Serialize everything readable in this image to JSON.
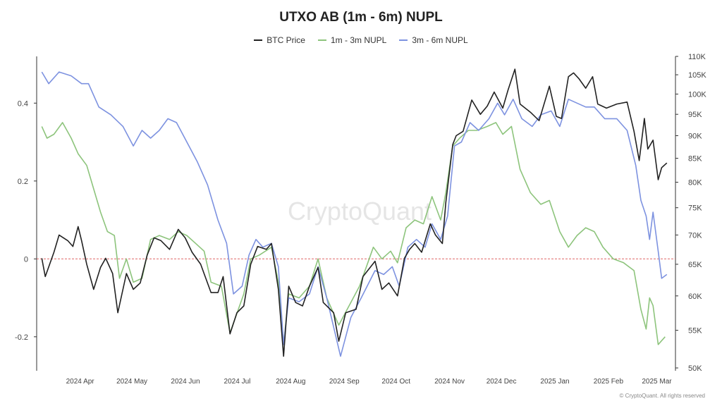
{
  "chart_data": {
    "type": "line",
    "title": "UTXO AB (1m - 6m) NUPL",
    "watermark": "CryptoQuant",
    "footer": "© CryptoQuant. All rights reserved",
    "x_range": [
      "2024-03-15",
      "2025-03-20"
    ],
    "left_axis": {
      "range": [
        -0.28,
        0.52
      ],
      "ticks": [
        -0.2,
        0,
        0.2,
        0.4
      ]
    },
    "right_axis": {
      "scale": "log",
      "range": [
        50000,
        110000
      ],
      "ticks": [
        50000,
        55000,
        60000,
        65000,
        70000,
        75000,
        80000,
        85000,
        90000,
        95000,
        100000,
        105000,
        110000
      ],
      "tick_labels": [
        "50K",
        "55K",
        "60K",
        "65K",
        "70K",
        "75K",
        "80K",
        "85K",
        "90K",
        "95K",
        "100K",
        "105K",
        "110K"
      ]
    },
    "x_ticks": [
      {
        "date": "2024-04-01",
        "label": "2024 Apr"
      },
      {
        "date": "2024-05-01",
        "label": "2024 May"
      },
      {
        "date": "2024-06-01",
        "label": "2024 Jun"
      },
      {
        "date": "2024-07-01",
        "label": "2024 Jul"
      },
      {
        "date": "2024-08-01",
        "label": "2024 Aug"
      },
      {
        "date": "2024-09-01",
        "label": "2024 Sep"
      },
      {
        "date": "2024-10-01",
        "label": "2024 Oct"
      },
      {
        "date": "2024-11-01",
        "label": "2024 Nov"
      },
      {
        "date": "2024-12-01",
        "label": "2024 Dec"
      },
      {
        "date": "2025-01-01",
        "label": "2025 Jan"
      },
      {
        "date": "2025-02-01",
        "label": "2025 Feb"
      },
      {
        "date": "2025-03-01",
        "label": "2025 Mar"
      }
    ],
    "zero_line": {
      "value": 0,
      "color": "#e06666"
    },
    "grid": false,
    "legend_position": "top-center",
    "series": [
      {
        "name": "BTC Price",
        "axis": "right",
        "color": "#222222",
        "points": [
          [
            "2024-03-18",
            66000
          ],
          [
            "2024-03-20",
            63000
          ],
          [
            "2024-03-25",
            67000
          ],
          [
            "2024-03-28",
            70000
          ],
          [
            "2024-04-02",
            69000
          ],
          [
            "2024-04-05",
            68000
          ],
          [
            "2024-04-08",
            71500
          ],
          [
            "2024-04-10",
            69000
          ],
          [
            "2024-04-13",
            65000
          ],
          [
            "2024-04-17",
            61000
          ],
          [
            "2024-04-21",
            64500
          ],
          [
            "2024-04-24",
            66000
          ],
          [
            "2024-04-28",
            63500
          ],
          [
            "2024-05-01",
            57500
          ],
          [
            "2024-05-06",
            63500
          ],
          [
            "2024-05-10",
            61000
          ],
          [
            "2024-05-14",
            62000
          ],
          [
            "2024-05-18",
            66500
          ],
          [
            "2024-05-22",
            69500
          ],
          [
            "2024-05-26",
            69000
          ],
          [
            "2024-05-31",
            67500
          ],
          [
            "2024-06-05",
            71000
          ],
          [
            "2024-06-09",
            69500
          ],
          [
            "2024-06-13",
            67000
          ],
          [
            "2024-06-18",
            65000
          ],
          [
            "2024-06-24",
            60500
          ],
          [
            "2024-06-28",
            60500
          ],
          [
            "2024-07-01",
            63000
          ],
          [
            "2024-07-05",
            54500
          ],
          [
            "2024-07-09",
            57500
          ],
          [
            "2024-07-13",
            58500
          ],
          [
            "2024-07-17",
            65000
          ],
          [
            "2024-07-21",
            68000
          ],
          [
            "2024-07-26",
            67500
          ],
          [
            "2024-07-29",
            68500
          ],
          [
            "2024-08-02",
            61000
          ],
          [
            "2024-08-05",
            51500
          ],
          [
            "2024-08-08",
            61500
          ],
          [
            "2024-08-12",
            59000
          ],
          [
            "2024-08-16",
            58500
          ],
          [
            "2024-08-20",
            61500
          ],
          [
            "2024-08-25",
            64500
          ],
          [
            "2024-08-28",
            59000
          ],
          [
            "2024-09-03",
            57500
          ],
          [
            "2024-09-06",
            53500
          ],
          [
            "2024-09-10",
            57500
          ],
          [
            "2024-09-16",
            58000
          ],
          [
            "2024-09-20",
            63000
          ],
          [
            "2024-09-27",
            65500
          ],
          [
            "2024-10-01",
            61000
          ],
          [
            "2024-10-05",
            62000
          ],
          [
            "2024-10-10",
            60000
          ],
          [
            "2024-10-14",
            66000
          ],
          [
            "2024-10-17",
            67500
          ],
          [
            "2024-10-20",
            68500
          ],
          [
            "2024-10-24",
            67000
          ],
          [
            "2024-10-29",
            72000
          ],
          [
            "2024-11-01",
            70000
          ],
          [
            "2024-11-05",
            68500
          ],
          [
            "2024-11-07",
            76000
          ],
          [
            "2024-11-11",
            88000
          ],
          [
            "2024-11-13",
            90000
          ],
          [
            "2024-11-17",
            91000
          ],
          [
            "2024-11-22",
            98500
          ],
          [
            "2024-11-27",
            95000
          ],
          [
            "2024-12-01",
            97000
          ],
          [
            "2024-12-05",
            100500
          ],
          [
            "2024-12-10",
            96500
          ],
          [
            "2024-12-13",
            101000
          ],
          [
            "2024-12-17",
            106500
          ],
          [
            "2024-12-20",
            97500
          ],
          [
            "2024-12-26",
            95500
          ],
          [
            "2024-12-31",
            93500
          ],
          [
            "2025-01-06",
            102000
          ],
          [
            "2025-01-10",
            94500
          ],
          [
            "2025-01-13",
            94000
          ],
          [
            "2025-01-17",
            104500
          ],
          [
            "2025-01-20",
            105500
          ],
          [
            "2025-01-23",
            104000
          ],
          [
            "2025-01-27",
            101500
          ],
          [
            "2025-01-31",
            104500
          ],
          [
            "2025-02-03",
            97500
          ],
          [
            "2025-02-08",
            96500
          ],
          [
            "2025-02-14",
            97500
          ],
          [
            "2025-02-20",
            98000
          ],
          [
            "2025-02-24",
            91000
          ],
          [
            "2025-02-27",
            84500
          ],
          [
            "2025-03-02",
            94000
          ],
          [
            "2025-03-04",
            87000
          ],
          [
            "2025-03-07",
            89000
          ],
          [
            "2025-03-10",
            80500
          ],
          [
            "2025-03-12",
            83000
          ],
          [
            "2025-03-15",
            84000
          ]
        ]
      },
      {
        "name": "1m - 3m NUPL",
        "axis": "left",
        "color": "#8dc47c",
        "points": [
          [
            "2024-03-18",
            0.34
          ],
          [
            "2024-03-21",
            0.31
          ],
          [
            "2024-03-25",
            0.32
          ],
          [
            "2024-03-30",
            0.35
          ],
          [
            "2024-04-04",
            0.31
          ],
          [
            "2024-04-08",
            0.27
          ],
          [
            "2024-04-13",
            0.24
          ],
          [
            "2024-04-17",
            0.18
          ],
          [
            "2024-04-21",
            0.12
          ],
          [
            "2024-04-25",
            0.07
          ],
          [
            "2024-04-29",
            0.06
          ],
          [
            "2024-05-02",
            -0.05
          ],
          [
            "2024-05-06",
            0.0
          ],
          [
            "2024-05-10",
            -0.06
          ],
          [
            "2024-05-15",
            -0.05
          ],
          [
            "2024-05-20",
            0.05
          ],
          [
            "2024-05-25",
            0.06
          ],
          [
            "2024-05-31",
            0.05
          ],
          [
            "2024-06-05",
            0.07
          ],
          [
            "2024-06-10",
            0.06
          ],
          [
            "2024-06-15",
            0.04
          ],
          [
            "2024-06-20",
            0.02
          ],
          [
            "2024-06-24",
            -0.06
          ],
          [
            "2024-06-30",
            -0.07
          ],
          [
            "2024-07-05",
            -0.19
          ],
          [
            "2024-07-09",
            -0.14
          ],
          [
            "2024-07-13",
            -0.09
          ],
          [
            "2024-07-17",
            0.0
          ],
          [
            "2024-07-22",
            0.01
          ],
          [
            "2024-07-29",
            0.03
          ],
          [
            "2024-08-02",
            -0.06
          ],
          [
            "2024-08-05",
            -0.22
          ],
          [
            "2024-08-08",
            -0.09
          ],
          [
            "2024-08-14",
            -0.1
          ],
          [
            "2024-08-20",
            -0.07
          ],
          [
            "2024-08-25",
            0.0
          ],
          [
            "2024-08-30",
            -0.1
          ],
          [
            "2024-09-06",
            -0.17
          ],
          [
            "2024-09-12",
            -0.12
          ],
          [
            "2024-09-18",
            -0.07
          ],
          [
            "2024-09-26",
            0.03
          ],
          [
            "2024-10-01",
            0.0
          ],
          [
            "2024-10-06",
            0.02
          ],
          [
            "2024-10-10",
            -0.01
          ],
          [
            "2024-10-15",
            0.08
          ],
          [
            "2024-10-20",
            0.1
          ],
          [
            "2024-10-25",
            0.09
          ],
          [
            "2024-10-30",
            0.16
          ],
          [
            "2024-11-04",
            0.1
          ],
          [
            "2024-11-07",
            0.17
          ],
          [
            "2024-11-11",
            0.29
          ],
          [
            "2024-11-15",
            0.31
          ],
          [
            "2024-11-20",
            0.33
          ],
          [
            "2024-11-25",
            0.33
          ],
          [
            "2024-12-01",
            0.34
          ],
          [
            "2024-12-06",
            0.35
          ],
          [
            "2024-12-10",
            0.32
          ],
          [
            "2024-12-15",
            0.34
          ],
          [
            "2024-12-20",
            0.23
          ],
          [
            "2024-12-26",
            0.17
          ],
          [
            "2025-01-01",
            0.14
          ],
          [
            "2025-01-06",
            0.15
          ],
          [
            "2025-01-12",
            0.07
          ],
          [
            "2025-01-17",
            0.03
          ],
          [
            "2025-01-22",
            0.06
          ],
          [
            "2025-01-27",
            0.08
          ],
          [
            "2025-02-01",
            0.07
          ],
          [
            "2025-02-06",
            0.03
          ],
          [
            "2025-02-12",
            0.0
          ],
          [
            "2025-02-18",
            -0.01
          ],
          [
            "2025-02-24",
            -0.03
          ],
          [
            "2025-02-28",
            -0.13
          ],
          [
            "2025-03-03",
            -0.18
          ],
          [
            "2025-03-05",
            -0.1
          ],
          [
            "2025-03-07",
            -0.12
          ],
          [
            "2025-03-10",
            -0.22
          ],
          [
            "2025-03-14",
            -0.2
          ]
        ]
      },
      {
        "name": "3m - 6m NUPL",
        "axis": "left",
        "color": "#7d92e0",
        "points": [
          [
            "2024-03-18",
            0.48
          ],
          [
            "2024-03-22",
            0.45
          ],
          [
            "2024-03-28",
            0.48
          ],
          [
            "2024-04-04",
            0.47
          ],
          [
            "2024-04-10",
            0.45
          ],
          [
            "2024-04-14",
            0.45
          ],
          [
            "2024-04-20",
            0.39
          ],
          [
            "2024-04-27",
            0.37
          ],
          [
            "2024-05-04",
            0.34
          ],
          [
            "2024-05-10",
            0.29
          ],
          [
            "2024-05-15",
            0.33
          ],
          [
            "2024-05-20",
            0.31
          ],
          [
            "2024-05-25",
            0.33
          ],
          [
            "2024-05-30",
            0.36
          ],
          [
            "2024-06-04",
            0.35
          ],
          [
            "2024-06-10",
            0.3
          ],
          [
            "2024-06-16",
            0.25
          ],
          [
            "2024-06-22",
            0.19
          ],
          [
            "2024-06-28",
            0.1
          ],
          [
            "2024-07-03",
            0.04
          ],
          [
            "2024-07-07",
            -0.09
          ],
          [
            "2024-07-12",
            -0.07
          ],
          [
            "2024-07-16",
            0.01
          ],
          [
            "2024-07-20",
            0.05
          ],
          [
            "2024-07-24",
            0.03
          ],
          [
            "2024-07-29",
            0.04
          ],
          [
            "2024-08-02",
            -0.02
          ],
          [
            "2024-08-05",
            -0.22
          ],
          [
            "2024-08-08",
            -0.1
          ],
          [
            "2024-08-14",
            -0.11
          ],
          [
            "2024-08-20",
            -0.09
          ],
          [
            "2024-08-25",
            -0.02
          ],
          [
            "2024-08-30",
            -0.1
          ],
          [
            "2024-09-07",
            -0.25
          ],
          [
            "2024-09-13",
            -0.15
          ],
          [
            "2024-09-19",
            -0.1
          ],
          [
            "2024-09-27",
            -0.03
          ],
          [
            "2024-10-02",
            -0.04
          ],
          [
            "2024-10-07",
            -0.02
          ],
          [
            "2024-10-11",
            -0.07
          ],
          [
            "2024-10-16",
            0.03
          ],
          [
            "2024-10-21",
            0.05
          ],
          [
            "2024-10-26",
            0.03
          ],
          [
            "2024-10-30",
            0.09
          ],
          [
            "2024-11-04",
            0.05
          ],
          [
            "2024-11-08",
            0.11
          ],
          [
            "2024-11-12",
            0.29
          ],
          [
            "2024-11-16",
            0.3
          ],
          [
            "2024-11-21",
            0.35
          ],
          [
            "2024-11-26",
            0.33
          ],
          [
            "2024-12-02",
            0.36
          ],
          [
            "2024-12-07",
            0.4
          ],
          [
            "2024-12-11",
            0.37
          ],
          [
            "2024-12-16",
            0.41
          ],
          [
            "2024-12-21",
            0.36
          ],
          [
            "2024-12-27",
            0.34
          ],
          [
            "2025-01-01",
            0.37
          ],
          [
            "2025-01-07",
            0.38
          ],
          [
            "2025-01-12",
            0.34
          ],
          [
            "2025-01-17",
            0.41
          ],
          [
            "2025-01-22",
            0.4
          ],
          [
            "2025-01-27",
            0.39
          ],
          [
            "2025-02-01",
            0.39
          ],
          [
            "2025-02-07",
            0.36
          ],
          [
            "2025-02-14",
            0.36
          ],
          [
            "2025-02-20",
            0.33
          ],
          [
            "2025-02-25",
            0.24
          ],
          [
            "2025-02-28",
            0.15
          ],
          [
            "2025-03-03",
            0.11
          ],
          [
            "2025-03-05",
            0.05
          ],
          [
            "2025-03-07",
            0.12
          ],
          [
            "2025-03-10",
            0.02
          ],
          [
            "2025-03-12",
            -0.05
          ],
          [
            "2025-03-15",
            -0.04
          ]
        ]
      }
    ]
  }
}
